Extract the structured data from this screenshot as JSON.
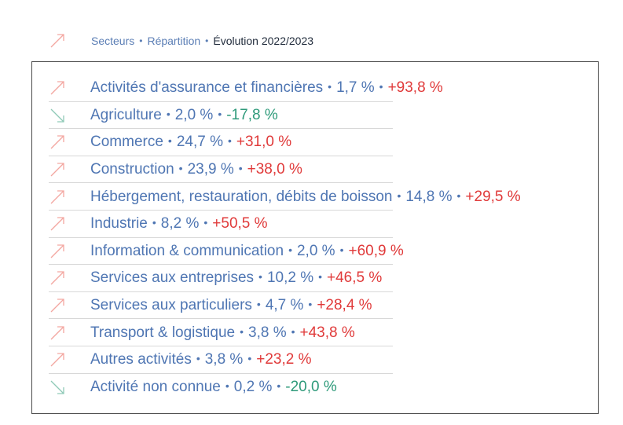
{
  "header": {
    "crumbs": [
      "Secteurs",
      "Répartition",
      "Évolution 2022/2023"
    ],
    "separator": "•"
  },
  "colors": {
    "label": "#4f76b3",
    "up": "#e03a3a",
    "down": "#2e9a7a",
    "arrow_up": "#f3a6a0",
    "arrow_down": "#8fc9b7"
  },
  "rows": [
    {
      "sector": "Activités d'assurance et financières",
      "share": "1,7 %",
      "change": "+93,8 %",
      "trend": "up",
      "icon": "trend-up-icon"
    },
    {
      "sector": "Agriculture",
      "share": "2,0 %",
      "change": "-17,8 %",
      "trend": "down",
      "icon": "trend-down-icon"
    },
    {
      "sector": "Commerce",
      "share": "24,7 %",
      "change": "+31,0 %",
      "trend": "up",
      "icon": "trend-up-icon"
    },
    {
      "sector": "Construction",
      "share": "23,9 %",
      "change": "+38,0 %",
      "trend": "up",
      "icon": "trend-up-icon"
    },
    {
      "sector": "Hébergement, restauration, débits de boisson",
      "share": "14,8 %",
      "change": "+29,5 %",
      "trend": "up",
      "icon": "trend-up-icon"
    },
    {
      "sector": "Industrie",
      "share": "8,2 %",
      "change": "+50,5 %",
      "trend": "up",
      "icon": "trend-up-icon"
    },
    {
      "sector": "Information & communication",
      "share": "2,0 %",
      "change": "+60,9 %",
      "trend": "up",
      "icon": "trend-up-icon"
    },
    {
      "sector": "Services aux entreprises",
      "share": "10,2 %",
      "change": "+46,5 %",
      "trend": "up",
      "icon": "trend-up-icon"
    },
    {
      "sector": "Services aux particuliers",
      "share": "4,7 %",
      "change": "+28,4 %",
      "trend": "up",
      "icon": "trend-up-icon"
    },
    {
      "sector": "Transport & logistique",
      "share": "3,8 %",
      "change": "+43,8 %",
      "trend": "up",
      "icon": "trend-up-icon"
    },
    {
      "sector": "Autres activités",
      "share": "3,8 %",
      "change": "+23,2 %",
      "trend": "up",
      "icon": "trend-up-icon"
    },
    {
      "sector": "Activité non connue",
      "share": "0,2 %",
      "change": "-20,0 %",
      "trend": "down",
      "icon": "trend-down-icon"
    }
  ]
}
